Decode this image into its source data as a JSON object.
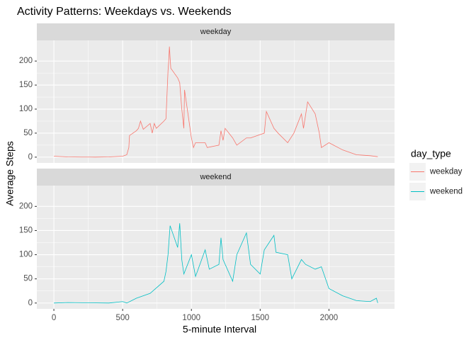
{
  "chart_data": {
    "type": "line",
    "title": "Activity Patterns: Weekdays vs. Weekends",
    "x_label": "5-minute Interval",
    "y_label": "Average Steps",
    "legend_title": "day_type",
    "xlim": [
      -124,
      2477
    ],
    "xticks": [
      0,
      500,
      1000,
      1500,
      2000
    ],
    "ylim": [
      -12,
      243
    ],
    "yticks": [
      0,
      50,
      100,
      150,
      200
    ],
    "grid": true,
    "series": [
      {
        "name": "weekday",
        "color": "#F8766D",
        "x": [
          0,
          100,
          200,
          300,
          400,
          500,
          530,
          545,
          550,
          600,
          615,
          630,
          650,
          700,
          715,
          730,
          745,
          800,
          815,
          830,
          835,
          840,
          850,
          900,
          915,
          930,
          945,
          950,
          1000,
          1015,
          1030,
          1100,
          1115,
          1200,
          1215,
          1230,
          1245,
          1300,
          1330,
          1400,
          1430,
          1530,
          1545,
          1600,
          1630,
          1700,
          1745,
          1800,
          1815,
          1845,
          1900,
          1930,
          1945,
          2000,
          2100,
          2200,
          2300,
          2355
        ],
        "values": [
          2,
          0.5,
          0.2,
          0.1,
          0.5,
          2,
          5,
          20,
          45,
          55,
          60,
          75,
          58,
          70,
          50,
          70,
          60,
          75,
          80,
          180,
          200,
          230,
          185,
          165,
          155,
          100,
          60,
          140,
          40,
          20,
          30,
          30,
          20,
          25,
          55,
          35,
          60,
          40,
          25,
          40,
          40,
          50,
          95,
          60,
          50,
          30,
          50,
          90,
          60,
          115,
          90,
          50,
          20,
          30,
          15,
          5,
          3,
          1
        ]
      },
      {
        "name": "weekend",
        "color": "#00BFC4",
        "x": [
          0,
          100,
          400,
          500,
          530,
          600,
          700,
          800,
          815,
          830,
          845,
          900,
          915,
          930,
          945,
          1000,
          1030,
          1100,
          1130,
          1200,
          1215,
          1230,
          1300,
          1330,
          1400,
          1430,
          1500,
          1530,
          1600,
          1615,
          1700,
          1730,
          1800,
          1830,
          1900,
          1945,
          2000,
          2100,
          2200,
          2300,
          2345,
          2355
        ],
        "values": [
          0,
          1,
          0,
          3,
          0,
          10,
          20,
          45,
          65,
          100,
          160,
          115,
          165,
          90,
          60,
          100,
          55,
          110,
          70,
          80,
          135,
          90,
          45,
          100,
          145,
          80,
          60,
          110,
          140,
          105,
          100,
          50,
          90,
          80,
          70,
          75,
          30,
          15,
          5,
          3,
          10,
          0
        ]
      }
    ]
  }
}
